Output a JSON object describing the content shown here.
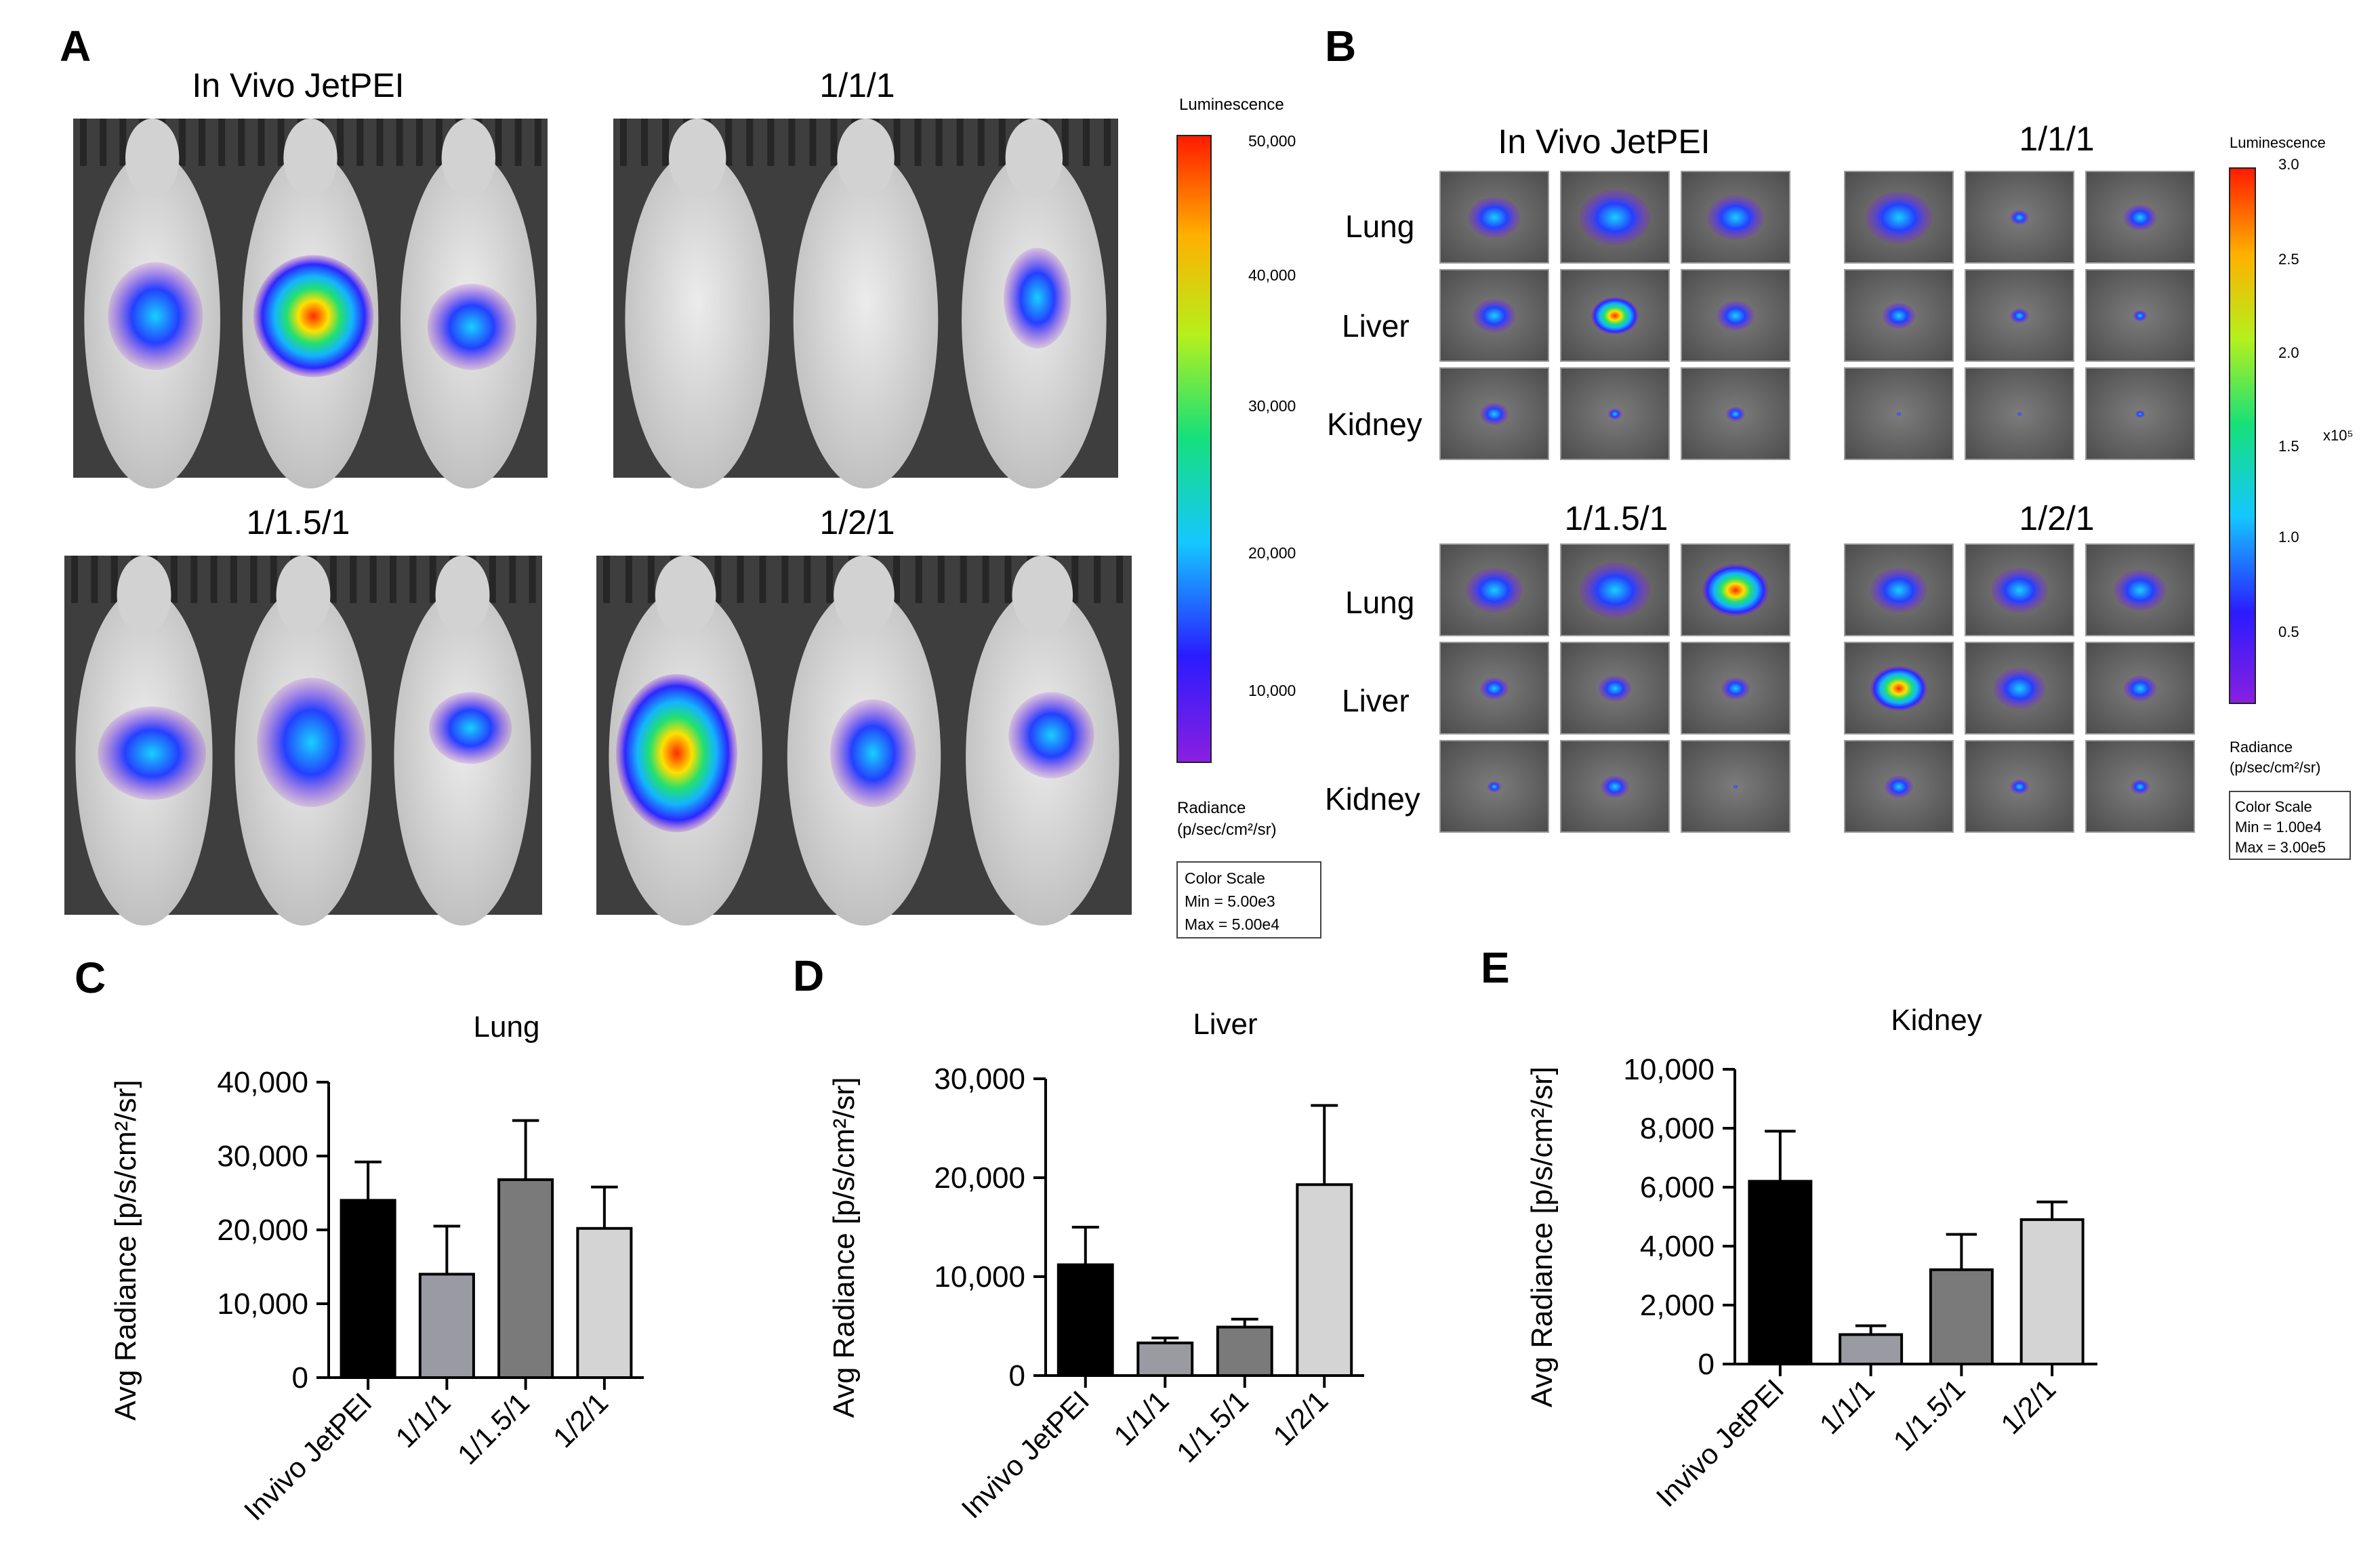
{
  "panels": {
    "A": {
      "letter": "A",
      "titles": [
        "In Vivo JetPEI",
        "1/1/1",
        "1/1.5/1",
        "1/2/1"
      ],
      "colorbar": {
        "title": "Luminescence",
        "ticks": [
          "50,000",
          "40,000",
          "30,000",
          "20,000",
          "10,000"
        ],
        "unit_line1": "Radiance",
        "unit_line2": "(p/sec/cm²/sr)",
        "scale_lines": [
          "Color Scale",
          "Min = 5.00e3",
          "Max = 5.00e4"
        ]
      }
    },
    "B": {
      "letter": "B",
      "group_titles": [
        "In Vivo JetPEI",
        "1/1/1",
        "1/1.5/1",
        "1/2/1"
      ],
      "organs": [
        "Lung",
        "Liver",
        "Kidney"
      ],
      "colorbar": {
        "title": "Luminescence",
        "ticks": [
          "3.0",
          "2.5",
          "2.0",
          "1.5",
          "1.0",
          "0.5"
        ],
        "exponent": "x10⁵",
        "unit_line1": "Radiance",
        "unit_line2": "(p/sec/cm²/sr)",
        "scale_lines": [
          "Color Scale",
          "Min = 1.00e4",
          "Max = 3.00e5"
        ]
      }
    }
  },
  "chart_data": [
    {
      "panel": "C",
      "type": "bar",
      "title": "Lung",
      "ylabel": "Avg Radiance [p/s/cm²/sr]",
      "xlabel": "",
      "categories": [
        "Invivo JetPEI",
        "1/1/1",
        "1/1.5/1",
        "1/2/1"
      ],
      "values": [
        24000,
        14000,
        26800,
        20200
      ],
      "errors": [
        5200,
        6500,
        8000,
        5600
      ],
      "fills": [
        "#000000",
        "#9a9aa2",
        "#7a7a7a",
        "#d4d4d4"
      ],
      "ylim": [
        0,
        40000
      ],
      "yticks": [
        0,
        10000,
        20000,
        30000,
        40000
      ],
      "ytick_labels": [
        "0",
        "10,000",
        "20,000",
        "30,000",
        "40,000"
      ]
    },
    {
      "panel": "D",
      "type": "bar",
      "title": "Liver",
      "ylabel": "Avg Radiance [p/s/cm²/sr]",
      "xlabel": "",
      "categories": [
        "Invivo JetPEI",
        "1/1/1",
        "1/1.5/1",
        "1/2/1"
      ],
      "values": [
        11200,
        3300,
        4900,
        19300
      ],
      "errors": [
        3800,
        500,
        800,
        8000
      ],
      "fills": [
        "#000000",
        "#9a9aa2",
        "#7a7a7a",
        "#d4d4d4"
      ],
      "ylim": [
        0,
        30000
      ],
      "yticks": [
        0,
        10000,
        20000,
        30000
      ],
      "ytick_labels": [
        "0",
        "10,000",
        "20,000",
        "30,000"
      ]
    },
    {
      "panel": "E",
      "type": "bar",
      "title": "Kidney",
      "ylabel": "Avg Radiance [p/s/cm²/sr]",
      "xlabel": "",
      "categories": [
        "Invivo JetPEI",
        "1/1/1",
        "1/1.5/1",
        "1/2/1"
      ],
      "values": [
        6200,
        1000,
        3200,
        4900
      ],
      "errors": [
        1700,
        300,
        1200,
        600
      ],
      "fills": [
        "#000000",
        "#9a9aa2",
        "#7a7a7a",
        "#d4d4d4"
      ],
      "ylim": [
        0,
        10000
      ],
      "yticks": [
        0,
        2000,
        4000,
        6000,
        8000,
        10000
      ],
      "ytick_labels": [
        "0",
        "2,000",
        "4,000",
        "6,000",
        "8,000",
        "10,000"
      ]
    }
  ]
}
